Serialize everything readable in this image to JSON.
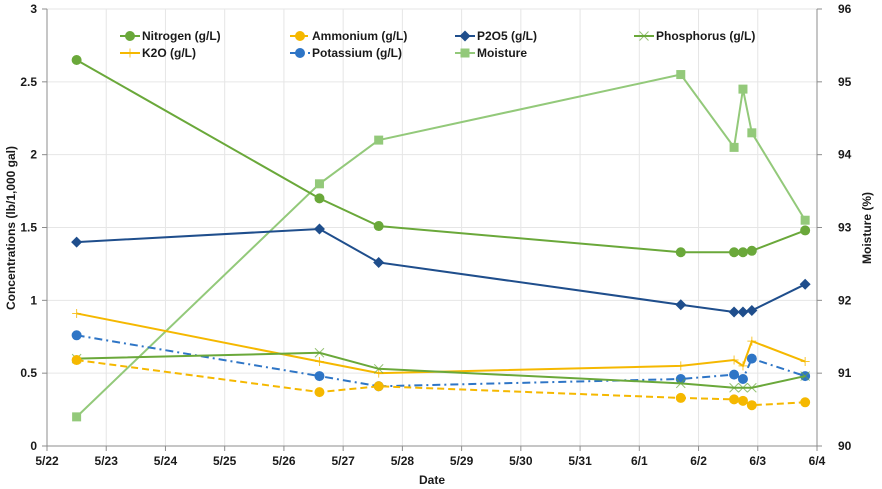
{
  "chart_data": {
    "type": "line",
    "title": "",
    "xlabel": "Date",
    "ylabel": "Concentrations (lb/1,000 gal)",
    "y2label": "Moisture (%)",
    "xlim": [
      0,
      13
    ],
    "ylim": [
      0,
      3
    ],
    "y2lim": [
      90,
      96
    ],
    "x_tick_labels": [
      "5/22",
      "5/23",
      "5/24",
      "5/25",
      "5/26",
      "5/27",
      "5/28",
      "5/29",
      "5/30",
      "5/31",
      "6/1",
      "6/2",
      "6/3",
      "6/4"
    ],
    "y_tick_labels": [
      "0",
      "0.5",
      "1",
      "1.5",
      "2",
      "2.5",
      "3"
    ],
    "y_ticks": [
      0,
      0.5,
      1,
      1.5,
      2,
      2.5,
      3
    ],
    "y2_tick_labels": [
      "90",
      "91",
      "92",
      "93",
      "94",
      "95",
      "96"
    ],
    "y2_ticks": [
      90,
      91,
      92,
      93,
      94,
      95,
      96
    ],
    "grid": true,
    "legend_position": "top",
    "x": [
      0.5,
      4.6,
      5.6,
      10.7,
      11.6,
      11.75,
      11.9,
      12.8
    ],
    "series": [
      {
        "name": "Nitrogen (g/L)",
        "color": "#6aa83a",
        "marker": "circle",
        "dash": "solid",
        "axis": "left",
        "values": [
          2.65,
          1.7,
          1.51,
          1.33,
          1.33,
          1.33,
          1.34,
          1.48
        ]
      },
      {
        "name": "Ammonium (g/L)",
        "color": "#f5b800",
        "marker": "circle",
        "dash": "dashed",
        "axis": "left",
        "values": [
          0.59,
          0.37,
          0.41,
          0.33,
          0.32,
          0.31,
          0.28,
          0.3
        ]
      },
      {
        "name": "P2O5 (g/L)",
        "color": "#1f4e8c",
        "marker": "diamond",
        "dash": "solid",
        "axis": "left",
        "values": [
          1.4,
          1.49,
          1.26,
          0.97,
          0.92,
          0.92,
          0.93,
          1.11
        ]
      },
      {
        "name": "Phosphorus (g/L)",
        "color": "#6aa83a",
        "marker": "x",
        "dash": "solid",
        "axis": "left",
        "values": [
          0.6,
          0.64,
          0.53,
          0.43,
          0.4,
          0.4,
          0.4,
          0.48
        ]
      },
      {
        "name": "K2O (g/L)",
        "color": "#f5b800",
        "marker": "plus",
        "dash": "solid",
        "axis": "left",
        "values": [
          0.91,
          0.58,
          0.5,
          0.55,
          0.59,
          0.55,
          0.72,
          0.58
        ]
      },
      {
        "name": "Potassium (g/L)",
        "color": "#2e75c6",
        "marker": "circle",
        "dash": "dashdot",
        "axis": "left",
        "values": [
          0.76,
          0.48,
          0.41,
          0.46,
          0.49,
          0.46,
          0.6,
          0.48
        ]
      },
      {
        "name": "Moisture",
        "color": "#93c97a",
        "marker": "square",
        "dash": "solid",
        "axis": "right",
        "values": [
          90.4,
          93.6,
          94.2,
          95.1,
          94.1,
          94.9,
          94.3,
          93.1
        ]
      }
    ]
  }
}
